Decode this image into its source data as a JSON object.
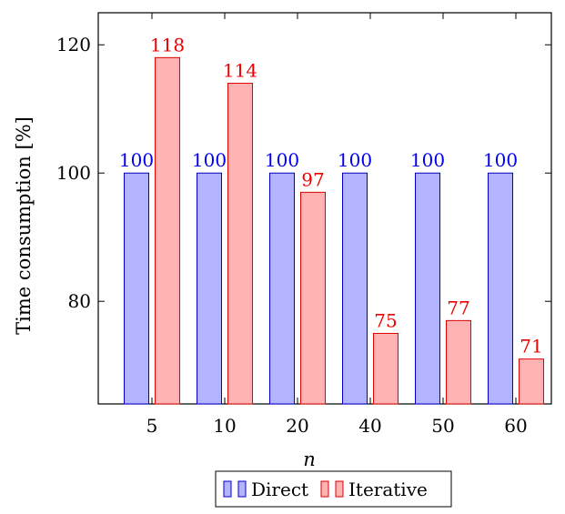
{
  "chart_data": {
    "type": "bar",
    "title": "",
    "xlabel": "n",
    "ylabel": "Time consumption [%]",
    "categories": [
      "5",
      "10",
      "20",
      "40",
      "50",
      "60"
    ],
    "ylim": [
      64,
      125
    ],
    "yticks": [
      80,
      100,
      120
    ],
    "grid": false,
    "legend_position": "bottom",
    "series": [
      {
        "name": "Direct",
        "values": [
          100,
          100,
          100,
          100,
          100,
          100
        ],
        "fill": "#b3b3ff",
        "stroke": "#0000cc",
        "label_color": "#0000ee"
      },
      {
        "name": "Iterative",
        "values": [
          118,
          114,
          97,
          75,
          77,
          71
        ],
        "fill": "#ffb3b3",
        "stroke": "#dd0000",
        "label_color": "#ee0000"
      }
    ]
  }
}
